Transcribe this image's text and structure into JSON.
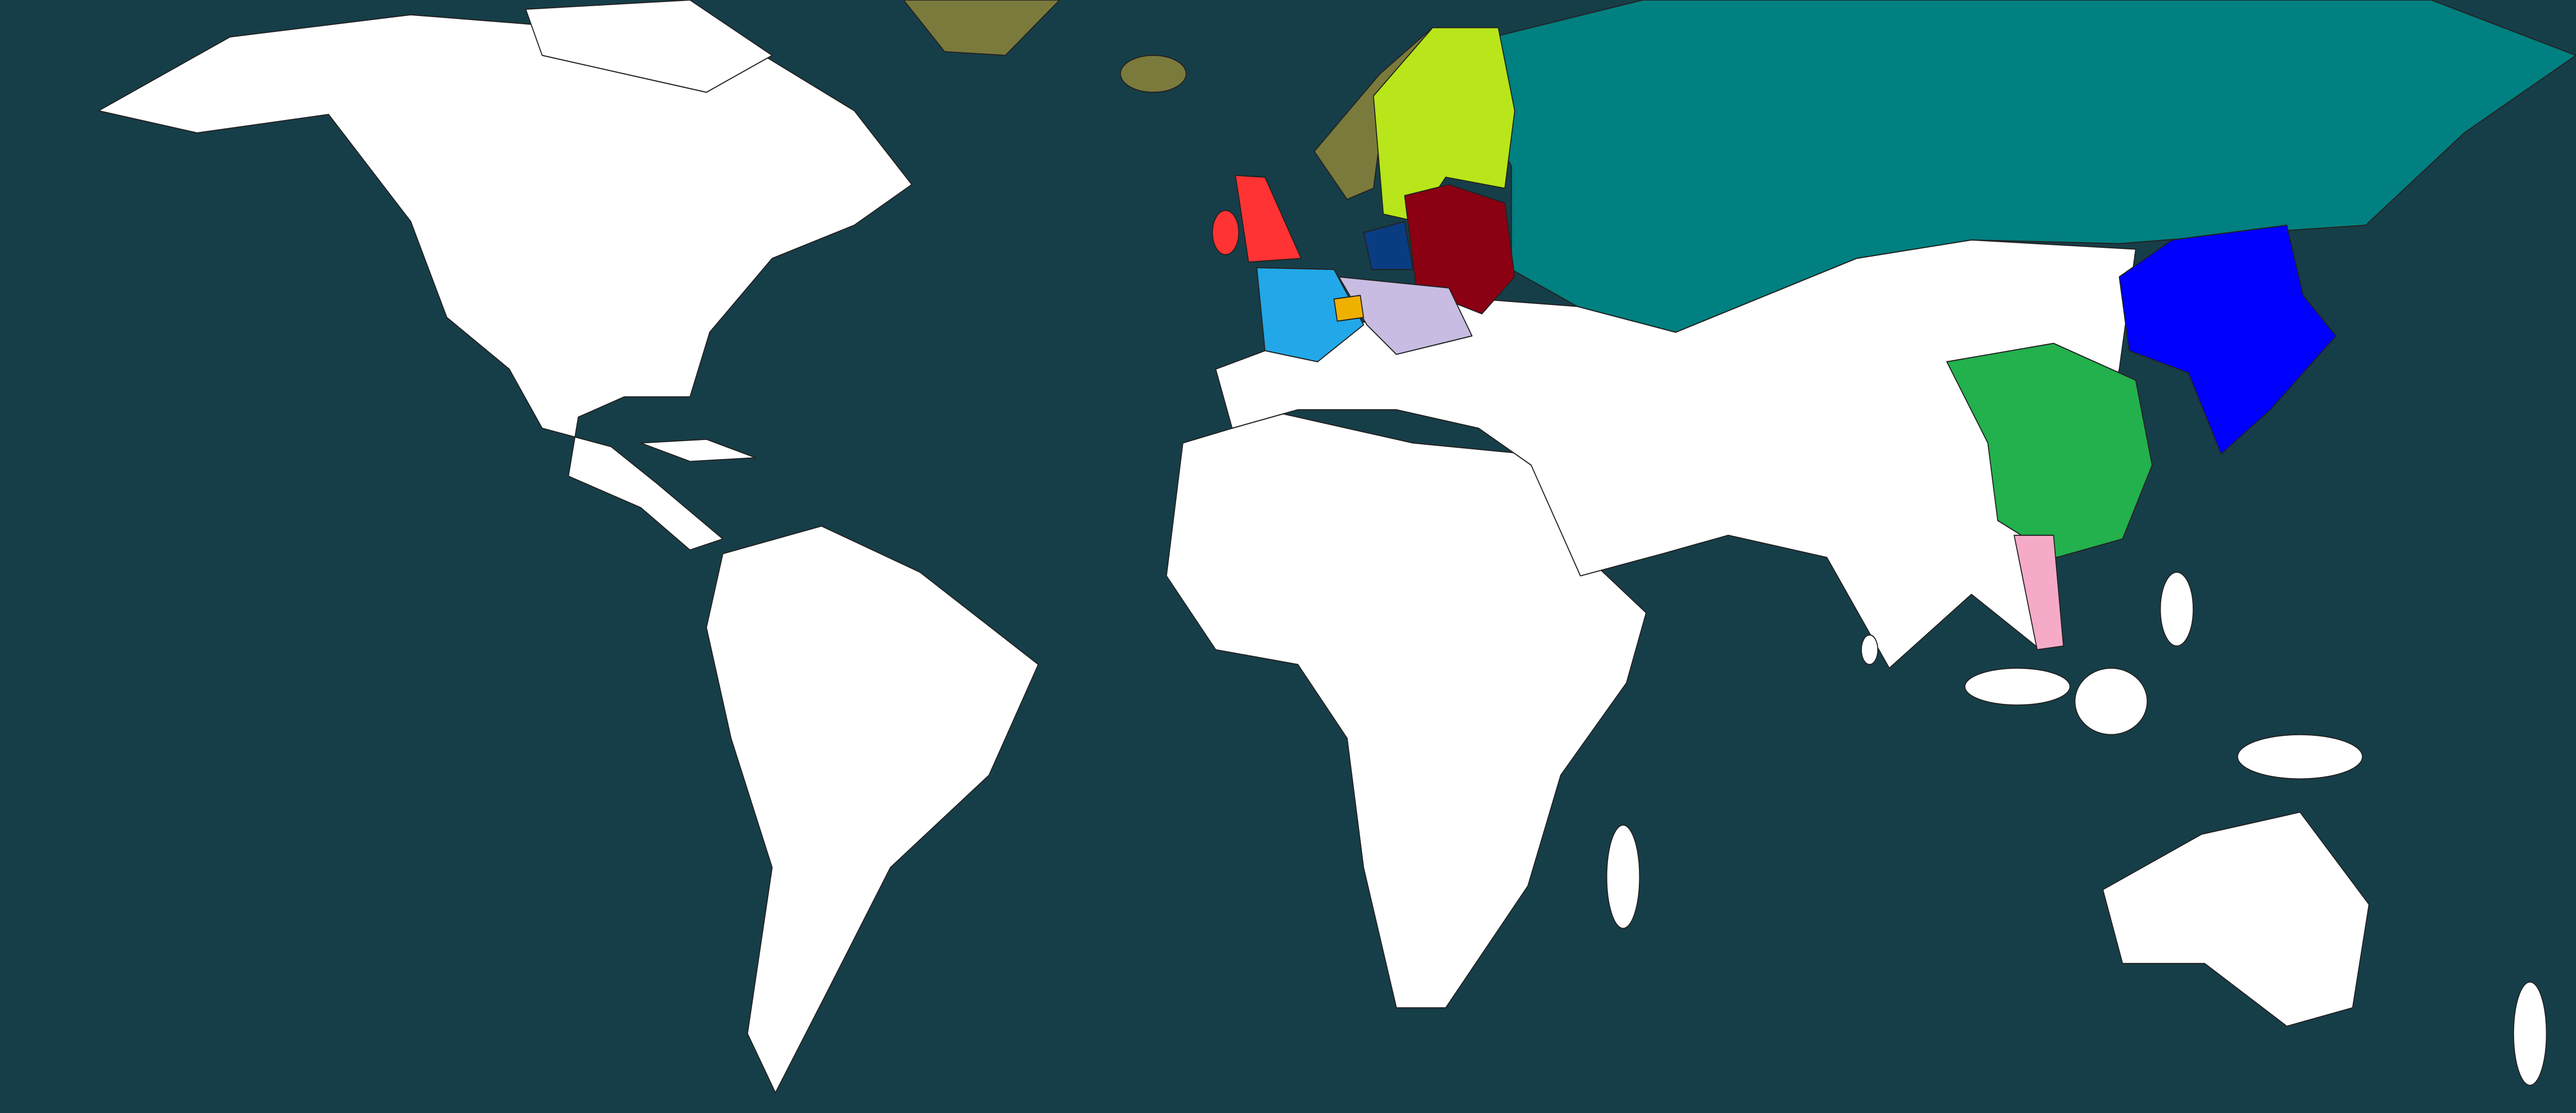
{
  "map": {
    "colors": {
      "ocean": "#163e49",
      "unowned_land": "#ffffff",
      "border": "#222222"
    },
    "regions": [
      {
        "id": "region-teal",
        "color": "#008080"
      },
      {
        "id": "region-yellow-green",
        "color": "#b8e61a"
      },
      {
        "id": "region-olive",
        "color": "#7a7a3c"
      },
      {
        "id": "region-dark-red",
        "color": "#8b0012"
      },
      {
        "id": "region-red",
        "color": "#ff3333"
      },
      {
        "id": "region-light-blue",
        "color": "#22a8e8"
      },
      {
        "id": "region-lavender",
        "color": "#c8bce2"
      },
      {
        "id": "region-orange",
        "color": "#f0b000"
      },
      {
        "id": "region-navy",
        "color": "#0a3c82"
      },
      {
        "id": "region-blue",
        "color": "#0000ff"
      },
      {
        "id": "region-green",
        "color": "#22b14c"
      },
      {
        "id": "region-pink",
        "color": "#f5aac8"
      }
    ]
  }
}
